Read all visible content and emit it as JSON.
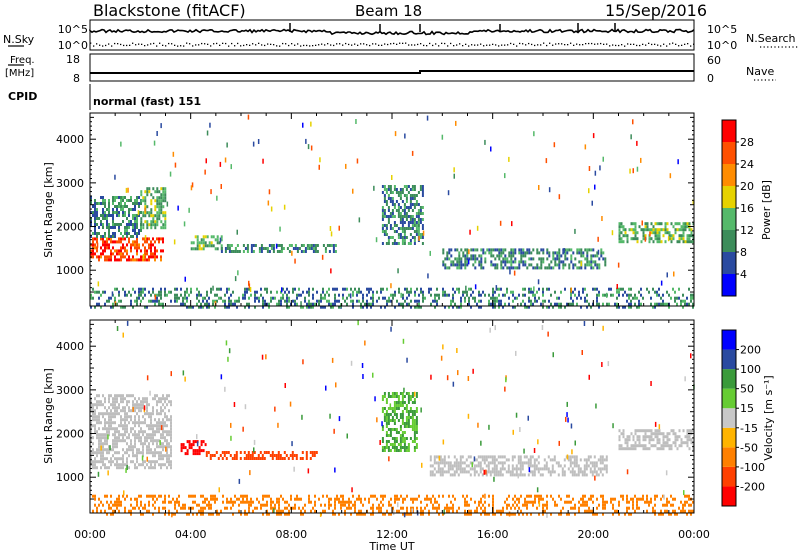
{
  "header": {
    "station": "Blackstone (fitACF)",
    "beam": "Beam 18",
    "date": "15/Sep/2016"
  },
  "status_panel": {
    "nsky_label": "N.Sky",
    "nsearch_label": "N.Search",
    "left_ticks": [
      "10^5",
      "10^0"
    ],
    "right_ticks": [
      "10^5",
      "10^0"
    ],
    "freq_label_1": "Freq.",
    "freq_label_2": "[MHz]",
    "freq_ticks": [
      "18",
      "8"
    ],
    "nave_label": "Nave",
    "nave_ticks": [
      "60",
      "0"
    ],
    "cpid_label": "CPID",
    "cpid_value": "normal (fast) 151"
  },
  "colors": {
    "power_scale": [
      "#0000ff",
      "#2a4aa0",
      "#3c8c5a",
      "#55b96a",
      "#e6d200",
      "#ff8c00",
      "#ff5000",
      "#ff0000"
    ],
    "velocity_scale": [
      "#ff0000",
      "#ff4000",
      "#ff8000",
      "#ffb400",
      "#c8c8c8",
      "#66cc33",
      "#3a9a3a",
      "#2a4aa0",
      "#0000ff"
    ],
    "ground_scatter": "#bebebe"
  },
  "chart_data": [
    {
      "type": "heatmap",
      "parameter": "Power",
      "xlabel": "",
      "ylabel": "Slant Range [km]",
      "x_ticks": [
        "00:00",
        "04:00",
        "08:00",
        "12:00",
        "16:00",
        "20:00",
        "00:00"
      ],
      "y_ticks": [
        "1000",
        "2000",
        "3000",
        "4000"
      ],
      "xlim": [
        0,
        24
      ],
      "ylim": [
        180,
        4600
      ],
      "colorbar_label": "Power [dB]",
      "colorbar_ticks": [
        "4",
        "8",
        "12",
        "16",
        "20",
        "24",
        "28"
      ],
      "colorbar_range": [
        0,
        30
      ],
      "features": [
        {
          "t_start": 0.0,
          "t_end": 2.9,
          "r_start": 1250,
          "r_end": 1750,
          "level": 28
        },
        {
          "t_start": 0.0,
          "t_end": 2.0,
          "r_start": 1800,
          "r_end": 2700,
          "level": 8
        },
        {
          "t_start": 2.0,
          "t_end": 3.0,
          "r_start": 2000,
          "r_end": 2900,
          "level": 12
        },
        {
          "t_start": 4.0,
          "t_end": 5.2,
          "r_start": 1500,
          "r_end": 1800,
          "level": 12
        },
        {
          "t_start": 5.2,
          "t_end": 9.8,
          "r_start": 1400,
          "r_end": 1600,
          "level": 8
        },
        {
          "t_start": 11.6,
          "t_end": 13.2,
          "r_start": 1600,
          "r_end": 2950,
          "level": 8
        },
        {
          "t_start": 14.0,
          "t_end": 20.5,
          "r_start": 1050,
          "r_end": 1500,
          "level": 8
        },
        {
          "t_start": 21.0,
          "t_end": 24.0,
          "r_start": 1650,
          "r_end": 2100,
          "level": 12
        },
        {
          "t_start": 0.0,
          "t_end": 24.0,
          "r_start": 180,
          "r_end": 600,
          "level": 8
        }
      ]
    },
    {
      "type": "heatmap",
      "parameter": "Velocity",
      "xlabel": "Time UT",
      "ylabel": "Slant Range [km]",
      "x_ticks": [
        "00:00",
        "04:00",
        "08:00",
        "12:00",
        "16:00",
        "20:00",
        "00:00"
      ],
      "y_ticks": [
        "1000",
        "2000",
        "3000",
        "4000"
      ],
      "xlim": [
        0,
        24
      ],
      "ylim": [
        180,
        4600
      ],
      "colorbar_label": "Velocity [m s⁻¹]",
      "colorbar_ticks": [
        "200",
        "100",
        "50",
        "15",
        "-15",
        "-50",
        "-100",
        "-200"
      ],
      "colorbar_range": [
        -250,
        250
      ],
      "features": [
        {
          "t_start": 0.0,
          "t_end": 3.2,
          "r_start": 1200,
          "r_end": 2900,
          "level": "gs"
        },
        {
          "t_start": 3.6,
          "t_end": 4.6,
          "r_start": 1550,
          "r_end": 1850,
          "level": -200
        },
        {
          "t_start": 4.6,
          "t_end": 9.0,
          "r_start": 1400,
          "r_end": 1600,
          "level": -100
        },
        {
          "t_start": 11.6,
          "t_end": 13.0,
          "r_start": 1600,
          "r_end": 2950,
          "level": 50
        },
        {
          "t_start": 13.5,
          "t_end": 20.5,
          "r_start": 1050,
          "r_end": 1500,
          "level": "gs"
        },
        {
          "t_start": 21.0,
          "t_end": 24.0,
          "r_start": 1650,
          "r_end": 2100,
          "level": "gs"
        },
        {
          "t_start": 0.0,
          "t_end": 24.0,
          "r_start": 180,
          "r_end": 600,
          "level": -50
        }
      ]
    }
  ]
}
